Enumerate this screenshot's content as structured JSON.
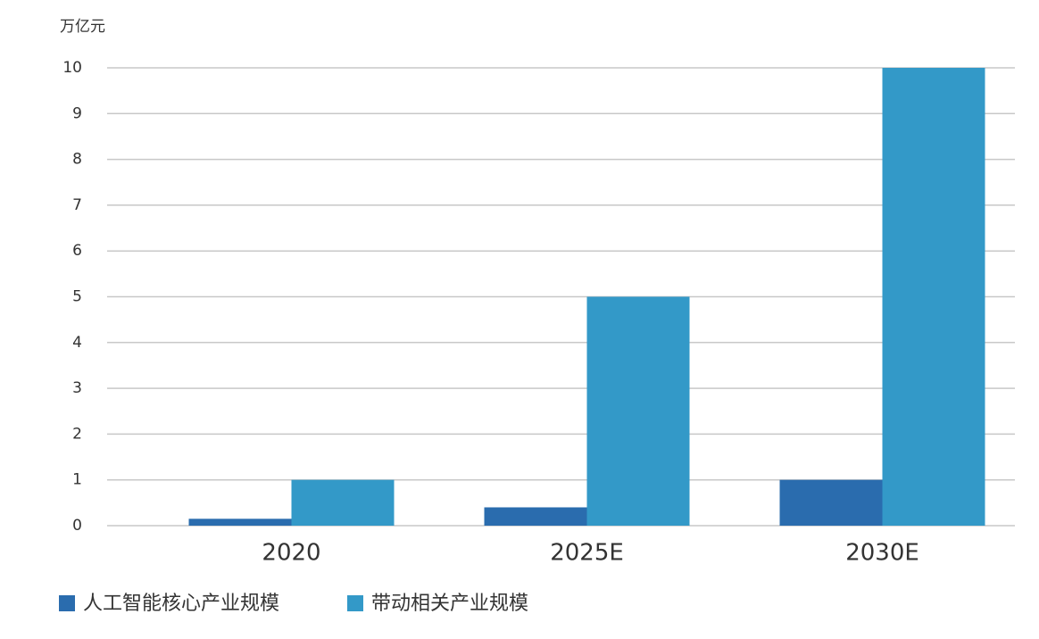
{
  "chart_data": {
    "type": "bar",
    "y_label": "万亿元",
    "categories": [
      "2020",
      "2025E",
      "2030E"
    ],
    "series": [
      {
        "name": "人工智能核心产业规模",
        "color": "#2a6cae",
        "values": [
          0.15,
          0.4,
          1
        ]
      },
      {
        "name": "带动相关产业规模",
        "color": "#3399c8",
        "values": [
          1,
          5,
          10
        ]
      }
    ],
    "ylim": [
      0,
      10
    ],
    "yticks": [
      0,
      1,
      2,
      3,
      4,
      5,
      6,
      7,
      8,
      9,
      10
    ],
    "grid": true
  }
}
